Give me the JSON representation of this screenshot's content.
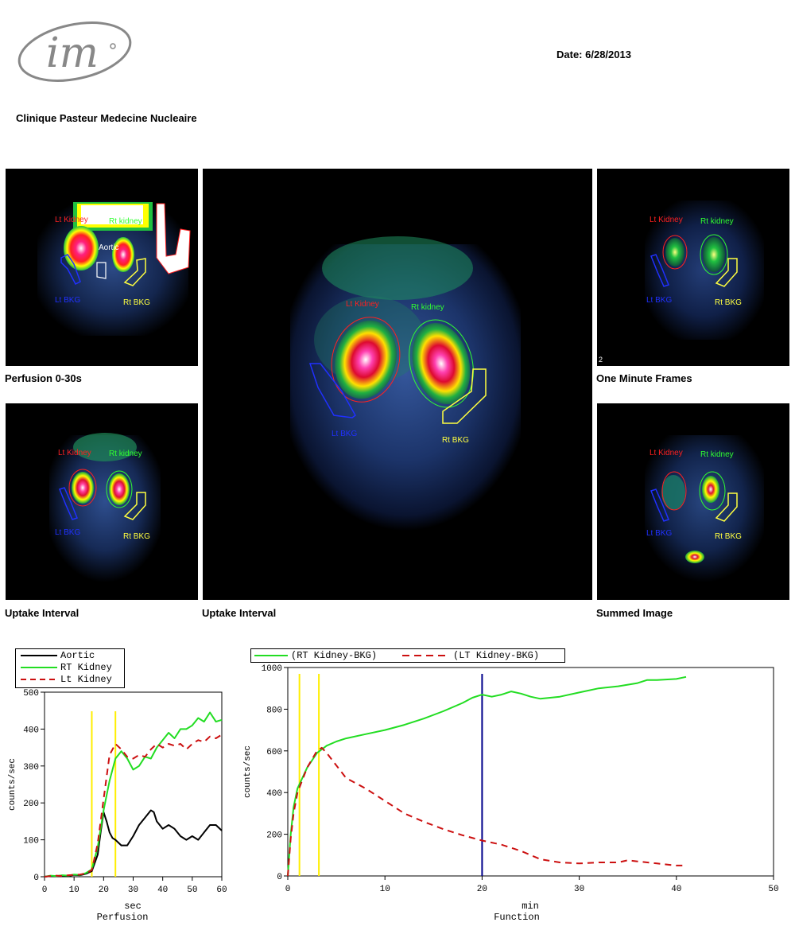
{
  "header": {
    "logo_text": "im",
    "date": "Date: 6/28/2013",
    "clinic": "Clinique Pasteur Medecine Nucleaire"
  },
  "panels": {
    "perfusion": {
      "caption": "Perfusion 0-30s",
      "labels": {
        "lt_kidney": "Lt Kidney",
        "rt_kidney": "Rt kidney",
        "aortic": "Aortic",
        "lt_bkg": "Lt BKG",
        "rt_bkg": "Rt BKG"
      }
    },
    "uptake_small": {
      "caption": "Uptake Interval",
      "labels": {
        "lt_kidney": "Lt Kidney",
        "rt_kidney": "Rt kidney",
        "lt_bkg": "Lt BKG",
        "rt_bkg": "Rt BKG"
      }
    },
    "uptake_large": {
      "caption": "Uptake Interval",
      "labels": {
        "lt_kidney": "Lt Kidney",
        "rt_kidney": "Rt kidney",
        "lt_bkg": "Lt BKG",
        "rt_bkg": "Rt BKG"
      }
    },
    "one_minute": {
      "caption": "One Minute Frames",
      "frame_number": "2",
      "labels": {
        "lt_kidney": "Lt Kidney",
        "rt_kidney": "Rt kidney",
        "lt_bkg": "Lt BKG",
        "rt_bkg": "Rt BKG"
      }
    },
    "summed": {
      "caption": "Summed Image",
      "labels": {
        "lt_kidney": "Lt Kidney",
        "rt_kidney": "Rt kidney",
        "lt_bkg": "Lt BKG",
        "rt_bkg": "Rt BKG"
      }
    }
  },
  "colors": {
    "lt_kidney_roi": "#ff2020",
    "rt_kidney_roi": "#30ff30",
    "lt_bkg_roi": "#2030ff",
    "rt_bkg_roi": "#ffff40",
    "aortic_roi": "#ffffff",
    "aortic_curve": "#000000",
    "rt_curve": "#22dd22",
    "lt_curve": "#cc1010",
    "marker_yellow": "#ffee00",
    "marker_blue": "#00008b"
  },
  "chart_data": [
    {
      "type": "line",
      "title": "Perfusion",
      "xlabel": "sec",
      "ylabel": "counts/sec",
      "xlim": [
        0,
        60
      ],
      "ylim": [
        0,
        500
      ],
      "xticks": [
        0,
        10,
        20,
        30,
        40,
        50,
        60
      ],
      "yticks": [
        0,
        100,
        200,
        300,
        400,
        500
      ],
      "markers": [
        16,
        24
      ],
      "series": [
        {
          "name": "Aortic",
          "style": "solid",
          "color": "#000000",
          "x": [
            0,
            2,
            4,
            6,
            8,
            10,
            12,
            14,
            16,
            18,
            19,
            20,
            21,
            22,
            23,
            24,
            26,
            28,
            30,
            32,
            34,
            36,
            37,
            38,
            40,
            42,
            44,
            46,
            48,
            50,
            52,
            54,
            56,
            58,
            60
          ],
          "y": [
            0,
            2,
            1,
            3,
            2,
            5,
            4,
            8,
            15,
            60,
            120,
            175,
            150,
            120,
            105,
            100,
            85,
            85,
            110,
            140,
            160,
            180,
            175,
            150,
            130,
            140,
            130,
            110,
            100,
            110,
            100,
            120,
            140,
            140,
            125
          ]
        },
        {
          "name": "RT Kidney",
          "style": "solid",
          "color": "#22dd22",
          "x": [
            0,
            2,
            4,
            6,
            8,
            10,
            12,
            14,
            16,
            18,
            20,
            22,
            24,
            26,
            28,
            30,
            32,
            34,
            36,
            38,
            40,
            42,
            44,
            46,
            48,
            50,
            52,
            54,
            56,
            58,
            60
          ],
          "y": [
            0,
            3,
            2,
            4,
            3,
            6,
            5,
            10,
            20,
            80,
            180,
            260,
            320,
            340,
            320,
            290,
            300,
            325,
            320,
            350,
            370,
            390,
            375,
            400,
            400,
            410,
            430,
            420,
            445,
            420,
            425
          ]
        },
        {
          "name": "Lt Kidney",
          "style": "dashed",
          "color": "#cc1010",
          "x": [
            0,
            2,
            4,
            6,
            8,
            10,
            12,
            14,
            16,
            18,
            20,
            22,
            24,
            26,
            28,
            30,
            32,
            34,
            36,
            38,
            40,
            42,
            44,
            46,
            48,
            50,
            52,
            54,
            56,
            58,
            60
          ],
          "y": [
            0,
            2,
            3,
            2,
            4,
            5,
            6,
            9,
            18,
            90,
            210,
            330,
            360,
            345,
            325,
            320,
            330,
            325,
            345,
            360,
            350,
            360,
            355,
            360,
            345,
            360,
            370,
            365,
            380,
            375,
            385
          ]
        }
      ]
    },
    {
      "type": "line",
      "title": "Function",
      "xlabel": "min",
      "ylabel": "counts/sec",
      "xlim": [
        0,
        50
      ],
      "ylim": [
        0,
        1000
      ],
      "xticks": [
        0,
        10,
        20,
        30,
        40,
        50
      ],
      "yticks": [
        0,
        200,
        400,
        600,
        800,
        1000
      ],
      "markers_yellow": [
        1.2,
        3.2
      ],
      "markers_blue": [
        20
      ],
      "series": [
        {
          "name": "(RT Kidney-BKG)",
          "style": "solid",
          "color": "#22dd22",
          "x": [
            0,
            0.3,
            0.6,
            1,
            1.5,
            2,
            3,
            4,
            5,
            6,
            8,
            10,
            12,
            14,
            16,
            18,
            19,
            20,
            21,
            22,
            23,
            24,
            25,
            26,
            27,
            28,
            30,
            32,
            34,
            36,
            37,
            38,
            40,
            41
          ],
          "y": [
            0,
            200,
            330,
            420,
            470,
            520,
            590,
            625,
            645,
            660,
            680,
            700,
            725,
            755,
            790,
            830,
            855,
            870,
            860,
            870,
            885,
            875,
            860,
            850,
            855,
            860,
            880,
            900,
            910,
            925,
            940,
            940,
            945,
            955
          ]
        },
        {
          "name": "(LT Kidney-BKG)",
          "style": "dashed",
          "color": "#cc1010",
          "x": [
            0,
            0.3,
            0.6,
            1,
            1.5,
            2,
            3,
            3.5,
            4,
            5,
            6,
            8,
            10,
            12,
            14,
            16,
            18,
            20,
            22,
            24,
            26,
            28,
            30,
            32,
            34,
            35,
            36,
            38,
            40,
            41
          ],
          "y": [
            0,
            180,
            300,
            400,
            460,
            520,
            600,
            615,
            590,
            530,
            470,
            420,
            360,
            300,
            260,
            225,
            195,
            170,
            150,
            120,
            80,
            65,
            60,
            65,
            65,
            75,
            70,
            60,
            50,
            50
          ]
        }
      ]
    }
  ]
}
